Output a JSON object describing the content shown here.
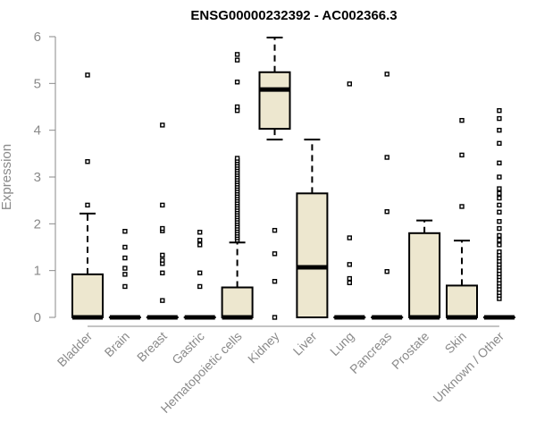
{
  "chart_data": {
    "type": "boxplot",
    "title": "ENSG00000232392 - AC002366.3",
    "xlabel": "",
    "ylabel": "Expression",
    "ylim": [
      0,
      6
    ],
    "yticks": [
      "0",
      "1",
      "2",
      "3",
      "4",
      "5",
      "6"
    ],
    "box_fill": "#ede7cf",
    "categories": [
      "Bladder",
      "Brain",
      "Breast",
      "Gastric",
      "Hematopoietic cells",
      "Kidney",
      "Liver",
      "Lung",
      "Pancreas",
      "Prostate",
      "Skin",
      "Unknown / Other"
    ],
    "boxes": [
      {
        "category": "Bladder",
        "min": 0,
        "q1": 0,
        "median": 0,
        "q3": 0.92,
        "max": 2.22,
        "outliers": [
          2.4,
          3.33,
          5.18
        ]
      },
      {
        "category": "Brain",
        "min": 0,
        "q1": 0,
        "median": 0,
        "q3": 0,
        "max": 0,
        "outliers": [
          0.66,
          0.92,
          1.05,
          1.27,
          1.5,
          1.84
        ]
      },
      {
        "category": "Breast",
        "min": 0,
        "q1": 0,
        "median": 0,
        "q3": 0,
        "max": 0,
        "outliers": [
          0.36,
          0.95,
          1.15,
          1.22,
          1.33,
          1.85,
          1.9,
          2.4,
          4.11
        ]
      },
      {
        "category": "Gastric",
        "min": 0,
        "q1": 0,
        "median": 0,
        "q3": 0,
        "max": 0,
        "outliers": [
          0.66,
          0.95,
          1.55,
          1.65,
          1.82
        ]
      },
      {
        "category": "Hematopoietic cells",
        "min": 0,
        "q1": 0,
        "median": 0,
        "q3": 0.64,
        "max": 1.6,
        "outliers": [
          1.65,
          1.7,
          1.75,
          1.8,
          1.85,
          1.9,
          1.95,
          2.0,
          2.05,
          2.1,
          2.15,
          2.2,
          2.25,
          2.3,
          2.35,
          2.4,
          2.45,
          2.5,
          2.55,
          2.6,
          2.65,
          2.7,
          2.75,
          2.8,
          2.85,
          2.9,
          2.95,
          3.0,
          3.05,
          3.1,
          3.15,
          3.2,
          3.25,
          3.3,
          3.35,
          3.4,
          4.42,
          4.5,
          5.03,
          5.5,
          5.62
        ]
      },
      {
        "category": "Kidney",
        "min": 3.8,
        "q1": 4.03,
        "median": 4.87,
        "q3": 5.24,
        "max": 5.98,
        "outliers": [
          0,
          0.77,
          1.36,
          1.86
        ]
      },
      {
        "category": "Liver",
        "min": 0,
        "q1": 0,
        "median": 1.07,
        "q3": 2.65,
        "max": 3.8,
        "outliers": []
      },
      {
        "category": "Lung",
        "min": 0,
        "q1": 0,
        "median": 0,
        "q3": 0,
        "max": 0,
        "outliers": [
          0.74,
          0.83,
          1.13,
          1.7,
          4.99
        ]
      },
      {
        "category": "Pancreas",
        "min": 0,
        "q1": 0,
        "median": 0,
        "q3": 0,
        "max": 0,
        "outliers": [
          0.98,
          2.26,
          3.42,
          5.2
        ]
      },
      {
        "category": "Prostate",
        "min": 0,
        "q1": 0,
        "median": 0,
        "q3": 1.8,
        "max": 2.07,
        "outliers": []
      },
      {
        "category": "Skin",
        "min": 0,
        "q1": 0,
        "median": 0,
        "q3": 0.68,
        "max": 1.64,
        "outliers": [
          2.37,
          3.47,
          4.21
        ]
      },
      {
        "category": "Unknown / Other",
        "min": 0,
        "q1": 0,
        "median": 0,
        "q3": 0,
        "max": 0,
        "outliers": [
          0.4,
          0.47,
          0.53,
          0.6,
          0.67,
          0.73,
          0.8,
          0.87,
          0.93,
          1.0,
          1.07,
          1.13,
          1.2,
          1.27,
          1.33,
          1.4,
          1.55,
          1.65,
          1.75,
          1.9,
          2.05,
          2.25,
          2.4,
          2.55,
          2.65,
          2.75,
          3.0,
          3.3,
          3.72,
          4.0,
          4.25,
          4.42
        ]
      }
    ]
  }
}
